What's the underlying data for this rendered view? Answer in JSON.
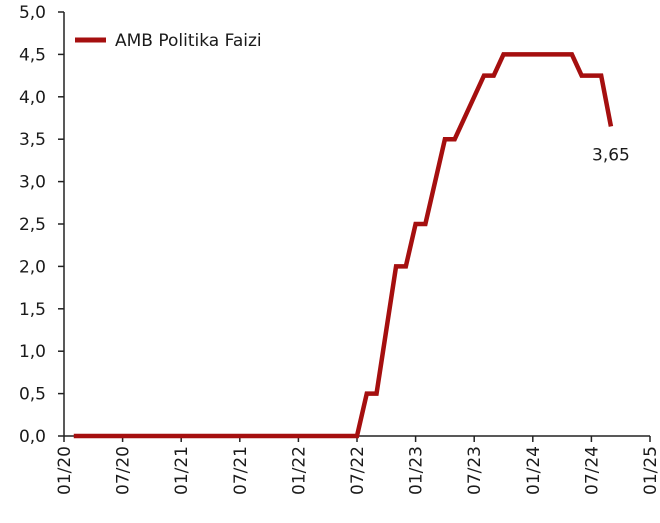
{
  "chart_data": {
    "type": "line",
    "x": [
      "2020-02",
      "2022-07",
      "2022-08",
      "2022-09",
      "2022-11",
      "2022-12",
      "2023-01",
      "2023-02",
      "2023-04",
      "2023-05",
      "2023-08",
      "2023-09",
      "2023-10",
      "2024-05",
      "2024-06",
      "2024-08",
      "2024-09"
    ],
    "series": [
      {
        "name": "AMB Politika Faizi",
        "color": "#a50f0f",
        "values": [
          0,
          0,
          0.5,
          0.5,
          2.0,
          2.0,
          2.5,
          2.5,
          3.5,
          3.5,
          4.25,
          4.25,
          4.5,
          4.5,
          4.25,
          4.25,
          3.65
        ],
        "value_labels": [
          null,
          null,
          null,
          null,
          null,
          null,
          null,
          null,
          null,
          null,
          null,
          null,
          null,
          null,
          null,
          null,
          "3,65"
        ]
      }
    ],
    "xlim": [
      "2020-01",
      "2025-01"
    ],
    "xticks": [
      {
        "value": "2020-01",
        "label": "01/20"
      },
      {
        "value": "2020-07",
        "label": "07/20"
      },
      {
        "value": "2021-01",
        "label": "01/21"
      },
      {
        "value": "2021-07",
        "label": "07/21"
      },
      {
        "value": "2022-01",
        "label": "01/22"
      },
      {
        "value": "2022-07",
        "label": "07/22"
      },
      {
        "value": "2023-01",
        "label": "01/23"
      },
      {
        "value": "2023-07",
        "label": "07/23"
      },
      {
        "value": "2024-01",
        "label": "01/24"
      },
      {
        "value": "2024-07",
        "label": "07/24"
      },
      {
        "value": "2025-01",
        "label": "01/25"
      }
    ],
    "ylim": [
      0,
      5
    ],
    "yticks": [
      {
        "value": 0,
        "label": "0,0"
      },
      {
        "value": 0.5,
        "label": "0,5"
      },
      {
        "value": 1,
        "label": "1,0"
      },
      {
        "value": 1.5,
        "label": "1,5"
      },
      {
        "value": 2,
        "label": "2,0"
      },
      {
        "value": 2.5,
        "label": "2,5"
      },
      {
        "value": 3,
        "label": "3,0"
      },
      {
        "value": 3.5,
        "label": "3,5"
      },
      {
        "value": 4,
        "label": "4,0"
      },
      {
        "value": 4.5,
        "label": "4,5"
      },
      {
        "value": 5,
        "label": "5,0"
      }
    ],
    "legend": "top-left",
    "grid": false
  }
}
